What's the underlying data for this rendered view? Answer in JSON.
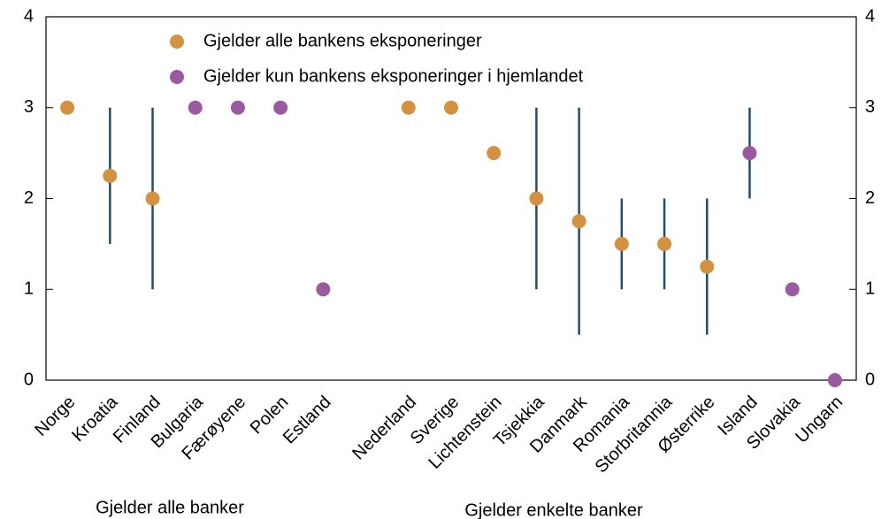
{
  "chart_data": {
    "type": "dot_range",
    "categories": [
      "Norge",
      "Kroatia",
      "Finland",
      "Bulgaria",
      "Færøyene",
      "Polen",
      "Estland",
      null,
      "Nederland",
      "Sverige",
      "Lichtenstein",
      "Tsjekkia",
      "Danmark",
      "Romania",
      "Storbritannia",
      "Østerrike",
      "Island",
      "Slovakia",
      "Ungarn"
    ],
    "series": [
      {
        "name": "Gjelder alle bankens eksponeringer",
        "color": "#d4913f",
        "values": [
          3,
          2.25,
          2,
          null,
          null,
          null,
          null,
          null,
          3,
          3,
          2.5,
          2,
          1.75,
          1.5,
          1.5,
          1.25,
          null,
          null,
          null
        ]
      },
      {
        "name": "Gjelder kun bankens eksponeringer i hjemlandet",
        "color": "#9b5aa0",
        "values": [
          null,
          null,
          null,
          3,
          3,
          3,
          1,
          null,
          null,
          null,
          null,
          null,
          null,
          null,
          null,
          null,
          2.5,
          1,
          0
        ]
      }
    ],
    "range_low": [
      null,
      1.5,
      1,
      null,
      null,
      null,
      null,
      null,
      null,
      null,
      null,
      1,
      0.5,
      1,
      1,
      0.5,
      2,
      null,
      null
    ],
    "range_high": [
      null,
      3,
      3,
      null,
      null,
      null,
      null,
      null,
      null,
      null,
      null,
      3,
      3,
      2,
      2,
      2,
      3,
      null,
      null
    ],
    "range_color": "#1f4e6e",
    "group_labels": [
      "Gjelder alle banker",
      "Gjelder enkelte banker"
    ],
    "ylim": [
      0,
      4
    ],
    "yticks": [
      0,
      1,
      2,
      3,
      4
    ]
  }
}
